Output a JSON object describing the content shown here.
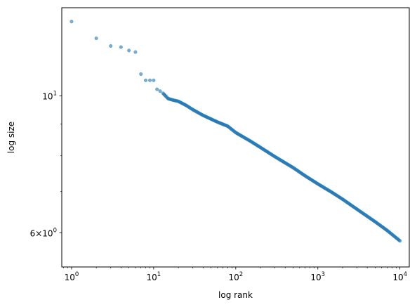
{
  "chart_data": {
    "type": "scatter",
    "xlabel": "log rank",
    "ylabel": "log size",
    "xscale": "log",
    "yscale": "log",
    "xlim": [
      0.76,
      13000
    ],
    "ylim": [
      5.28,
      13.9
    ],
    "grid": false,
    "legend": "none",
    "marker_color": "#1f77b4",
    "marker_alpha": 0.6,
    "x_ticks": [
      {
        "value": 1,
        "base": "10",
        "exp": "0"
      },
      {
        "value": 10,
        "base": "10",
        "exp": "1"
      },
      {
        "value": 100,
        "base": "10",
        "exp": "2"
      },
      {
        "value": 1000,
        "base": "10",
        "exp": "3"
      },
      {
        "value": 10000,
        "base": "10",
        "exp": "4"
      }
    ],
    "y_ticks": [
      {
        "value": 10,
        "base": "10",
        "exp": "1",
        "prefix": ""
      },
      {
        "value": 6,
        "base": "10",
        "exp": "0",
        "prefix": "6×"
      }
    ],
    "y_minor_ticks": [
      7,
      8,
      9
    ],
    "points": [
      [
        1,
        13.2
      ],
      [
        2,
        12.4
      ],
      [
        3,
        12.05
      ],
      [
        4,
        12.0
      ],
      [
        5,
        11.85
      ],
      [
        6,
        11.78
      ],
      [
        7,
        10.85
      ],
      [
        8,
        10.6
      ],
      [
        9,
        10.6
      ],
      [
        10,
        10.6
      ],
      [
        11,
        10.25
      ],
      [
        12,
        10.18
      ],
      [
        13,
        10.1
      ],
      [
        15,
        9.9
      ],
      [
        17,
        9.85
      ],
      [
        20,
        9.8
      ],
      [
        25,
        9.65
      ],
      [
        30,
        9.5
      ],
      [
        40,
        9.3
      ],
      [
        60,
        9.07
      ],
      [
        80,
        8.93
      ],
      [
        100,
        8.72
      ],
      [
        150,
        8.45
      ],
      [
        200,
        8.25
      ],
      [
        300,
        7.97
      ],
      [
        500,
        7.65
      ],
      [
        700,
        7.42
      ],
      [
        1000,
        7.2
      ],
      [
        1500,
        6.97
      ],
      [
        2000,
        6.8
      ],
      [
        3000,
        6.55
      ],
      [
        5000,
        6.25
      ],
      [
        7000,
        6.05
      ],
      [
        10000,
        5.82
      ]
    ]
  }
}
